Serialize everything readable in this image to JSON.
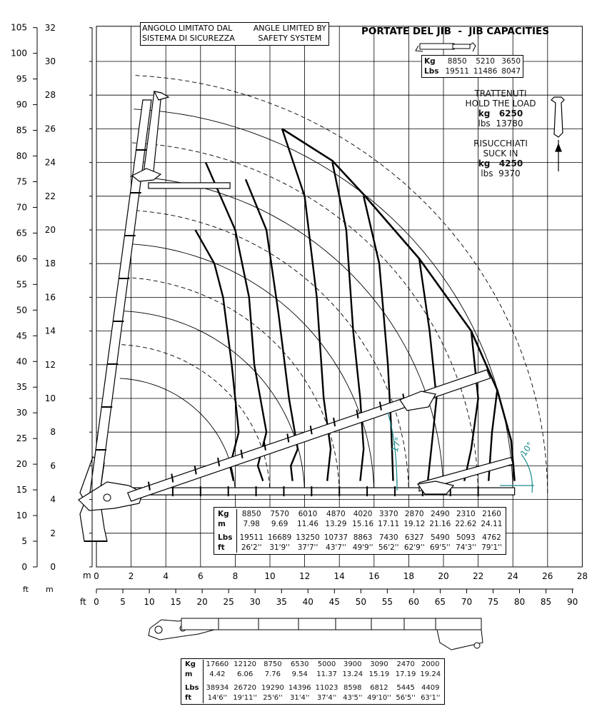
{
  "title": "PORTATE DEL JIB  -  JIB CAPACITIES",
  "angle_note": {
    "it_line1": "ANGOLO LIMITATO DAL",
    "it_line2": "SISTEMA DI SICUREZZA",
    "en_line1": "ANGLE LIMITED BY",
    "en_line2": "SAFETY SYSTEM"
  },
  "jib_caps": {
    "kg_label": "Kg",
    "lbs_label": "Lbs",
    "kg": [
      "8850",
      "5210",
      "3650"
    ],
    "lbs": [
      "19511",
      "11486",
      "8047"
    ]
  },
  "hold": {
    "it": "TRATTENUTI",
    "en": "HOLD THE LOAD",
    "kg_label": "kg",
    "kg": "6250",
    "lbs_label": "lbs",
    "lbs": "13780"
  },
  "suck": {
    "it": "RISUCCHIATI",
    "en": "SUCK IN",
    "kg_label": "kg",
    "kg": "4250",
    "lbs_label": "lbs",
    "lbs": "9370"
  },
  "angles": {
    "a1": "17°",
    "a2": "10°"
  },
  "table_labels": {
    "kg": "Kg",
    "m": "m",
    "lbs": "Lbs",
    "ft": "ft"
  },
  "main_table": {
    "kg": [
      "8850",
      "7570",
      "6010",
      "4870",
      "4020",
      "3370",
      "2870",
      "2490",
      "2310",
      "2160"
    ],
    "m": [
      "7.98",
      "9.69",
      "11.46",
      "13.29",
      "15.16",
      "17.11",
      "19.12",
      "21.16",
      "22.62",
      "24.11"
    ],
    "lbs": [
      "19511",
      "16689",
      "13250",
      "10737",
      "8863",
      "7430",
      "6327",
      "5490",
      "5093",
      "4762"
    ],
    "ft": [
      "26'2''",
      "31'9''",
      "37'7''",
      "43'7''",
      "49'9''",
      "56'2''",
      "62'9''",
      "69'5''",
      "74'3''",
      "79'1''"
    ]
  },
  "bottom_table": {
    "kg": [
      "17660",
      "12120",
      "8750",
      "6530",
      "5000",
      "3900",
      "3090",
      "2470",
      "2000"
    ],
    "m": [
      "4.42",
      "6.06",
      "7.76",
      "9.54",
      "11.37",
      "13.24",
      "15.19",
      "17.19",
      "19.24"
    ],
    "lbs": [
      "38934",
      "26720",
      "19290",
      "14396",
      "11023",
      "8598",
      "6812",
      "5445",
      "4409"
    ],
    "ft": [
      "14'6''",
      "19'11''",
      "25'6''",
      "31'4''",
      "37'4''",
      "43'5''",
      "49'10''",
      "56'5''",
      "63'1''"
    ]
  },
  "axes": {
    "ft_label": "ft",
    "m_label": "m",
    "left_ft": [
      "0",
      "5",
      "10",
      "15",
      "20",
      "25",
      "30",
      "35",
      "40",
      "45",
      "50",
      "55",
      "60",
      "65",
      "70",
      "75",
      "80",
      "85",
      "90",
      "95",
      "100",
      "105"
    ],
    "left_m": [
      "0",
      "2",
      "4",
      "6",
      "8",
      "10",
      "12",
      "14",
      "16",
      "18",
      "20",
      "22",
      "24",
      "26",
      "28",
      "30",
      "32"
    ],
    "bottom_m": [
      "0",
      "2",
      "4",
      "6",
      "8",
      "10",
      "12",
      "14",
      "16",
      "18",
      "20",
      "22",
      "24",
      "26",
      "28"
    ],
    "bottom_ft": [
      "0",
      "5",
      "10",
      "15",
      "20",
      "25",
      "30",
      "35",
      "40",
      "45",
      "50",
      "55",
      "60",
      "65",
      "70",
      "75",
      "80",
      "85",
      "90"
    ]
  }
}
